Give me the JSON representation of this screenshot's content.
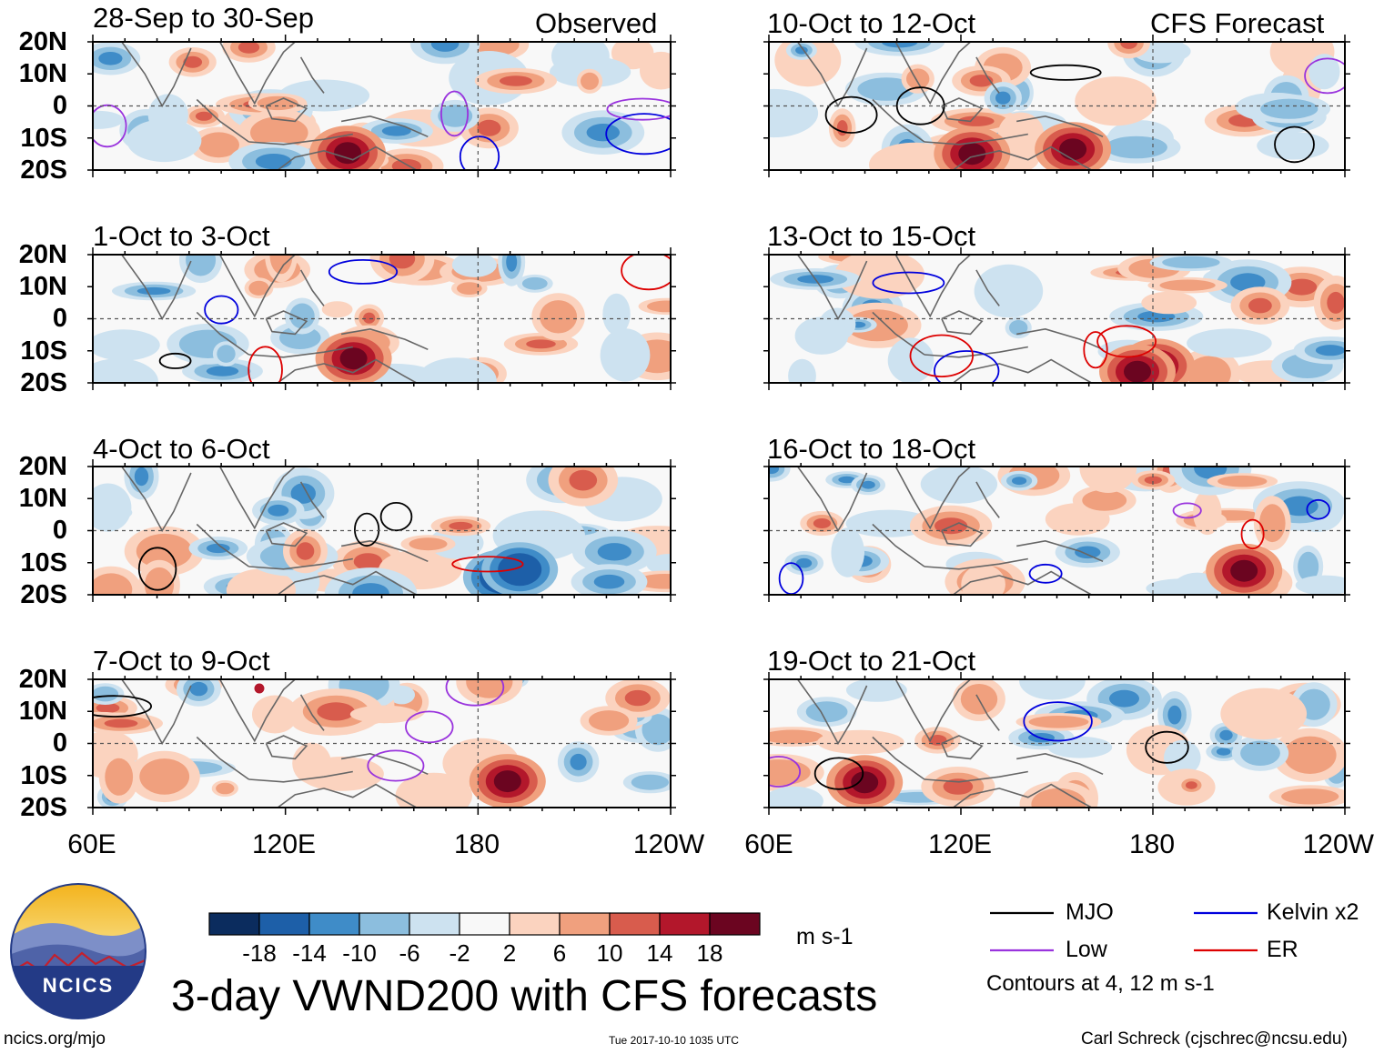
{
  "chart_data": {
    "type": "heatmap",
    "title": "3-day VWND200 with CFS forecasts",
    "colorbar": {
      "ticks": [
        "-18",
        "-14",
        "-10",
        "-6",
        "-2",
        "2",
        "6",
        "10",
        "14",
        "18"
      ],
      "colors": [
        "#0b2c5e",
        "#1d5fa8",
        "#3f8cc8",
        "#8cbede",
        "#cde2f0",
        "#f8f8f8",
        "#fbd3bf",
        "#f0a07e",
        "#d85c4d",
        "#b3172b",
        "#6b0520"
      ],
      "units": "m s-1"
    },
    "columns": [
      {
        "title": "Observed"
      },
      {
        "title": "CFS Forecast"
      }
    ],
    "panels": [
      {
        "period": "28-Sep to 30-Sep",
        "source": "Observed"
      },
      {
        "period": "1-Oct to 3-Oct",
        "source": "Observed"
      },
      {
        "period": "4-Oct to 6-Oct",
        "source": "Observed"
      },
      {
        "period": "7-Oct to 9-Oct",
        "source": "Observed"
      },
      {
        "period": "10-Oct to 12-Oct",
        "source": "CFS Forecast"
      },
      {
        "period": "13-Oct to 15-Oct",
        "source": "CFS Forecast"
      },
      {
        "period": "16-Oct to 18-Oct",
        "source": "CFS Forecast"
      },
      {
        "period": "19-Oct to 21-Oct",
        "source": "CFS Forecast"
      }
    ],
    "y_ticks": [
      "20N",
      "10N",
      "0",
      "10S",
      "20S"
    ],
    "x_ticks": [
      "60E",
      "120E",
      "180",
      "120W"
    ],
    "ylim": [
      -20,
      20
    ],
    "xlim": [
      60,
      240
    ],
    "legend": [
      {
        "label": "MJO",
        "color": "#000000"
      },
      {
        "label": "Kelvin x2",
        "color": "#0000dd"
      },
      {
        "label": "Low",
        "color": "#9933dd"
      },
      {
        "label": "ER",
        "color": "#dd0000"
      }
    ],
    "contour_note": "Contours at 4, 12 m s-1"
  },
  "logo": {
    "text": "NCICS"
  },
  "footer": {
    "left": "ncics.org/mjo",
    "center": "Tue 2017-10-10 1035 UTC",
    "right": "Carl Schreck (cjschrec@ncsu.edu)"
  }
}
